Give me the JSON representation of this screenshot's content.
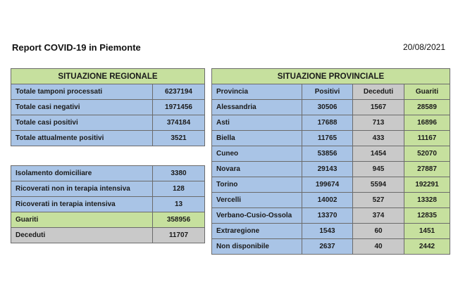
{
  "header": {
    "title": "Report COVID-19 in Piemonte",
    "date": "20/08/2021"
  },
  "regional": {
    "title": "SITUAZIONE REGIONALE",
    "rows": [
      [
        "Totale tamponi processati",
        6237194
      ],
      [
        "Totale casi negativi",
        1971456
      ],
      [
        "Totale casi positivi",
        374184
      ],
      [
        "Totale attualmente positivi",
        3521
      ]
    ]
  },
  "regional_detail": {
    "rows": [
      [
        "Isolamento domiciliare",
        3380
      ],
      [
        "Ricoverati non in terapia intensiva",
        128
      ],
      [
        "Ricoverati in terapia intensiva",
        13
      ],
      [
        "Guariti",
        358956
      ],
      [
        "Deceduti",
        11707
      ]
    ]
  },
  "provincial": {
    "title": "SITUAZIONE PROVINCIALE",
    "columns": [
      "Provincia",
      "Positivi",
      "Deceduti",
      "Guariti"
    ],
    "rows": [
      [
        "Alessandria",
        30506,
        1567,
        28589
      ],
      [
        "Asti",
        17688,
        713,
        16896
      ],
      [
        "Biella",
        11765,
        433,
        11167
      ],
      [
        "Cuneo",
        53856,
        1454,
        52070
      ],
      [
        "Novara",
        29143,
        945,
        27887
      ],
      [
        "Torino",
        199674,
        5594,
        192291
      ],
      [
        "Vercelli",
        14002,
        527,
        13328
      ],
      [
        "Verbano-Cusio-Ossola",
        13370,
        374,
        12835
      ],
      [
        "Extraregione",
        1543,
        60,
        1451
      ],
      [
        "Non disponibile",
        2637,
        40,
        2442
      ]
    ]
  }
}
